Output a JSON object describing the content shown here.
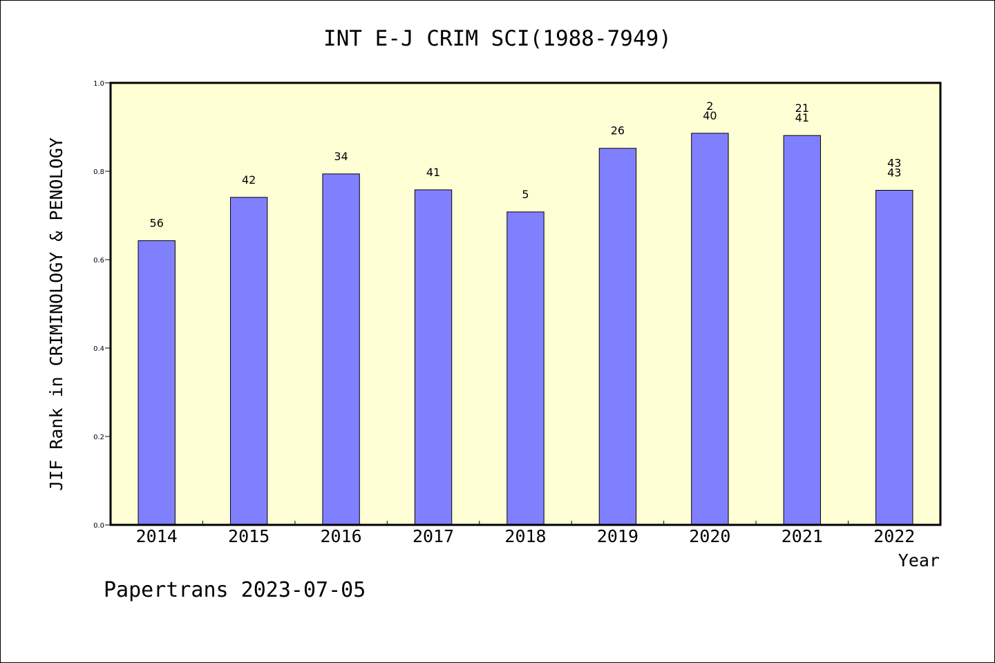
{
  "chart_data": {
    "type": "bar",
    "title": "INT E-J CRIM SCI(1988-7949)",
    "xlabel": "Year",
    "ylabel": "JIF Rank in CRIMINOLOGY & PENOLOGY",
    "categories": [
      "2014",
      "2015",
      "2016",
      "2017",
      "2018",
      "2019",
      "2020",
      "2021",
      "2022"
    ],
    "values": [
      0.643,
      0.741,
      0.794,
      0.758,
      0.708,
      0.852,
      0.886,
      0.881,
      0.757
    ],
    "bar_labels": [
      [
        "56"
      ],
      [
        "42"
      ],
      [
        "34"
      ],
      [
        "41"
      ],
      [
        "5"
      ],
      [
        "26"
      ],
      [
        "2",
        "40"
      ],
      [
        "21",
        "41"
      ],
      [
        "43",
        "43"
      ]
    ],
    "ylim": [
      0,
      1.0
    ],
    "yticks": [
      "0.0",
      "0.2",
      "0.4",
      "0.6",
      "0.8",
      "1.0"
    ],
    "grid": false,
    "colors": {
      "bar": "#8080ff",
      "plot_background": "#ffffd5",
      "bar_edge": "#000000"
    }
  },
  "footer": "Papertrans 2023-07-05"
}
